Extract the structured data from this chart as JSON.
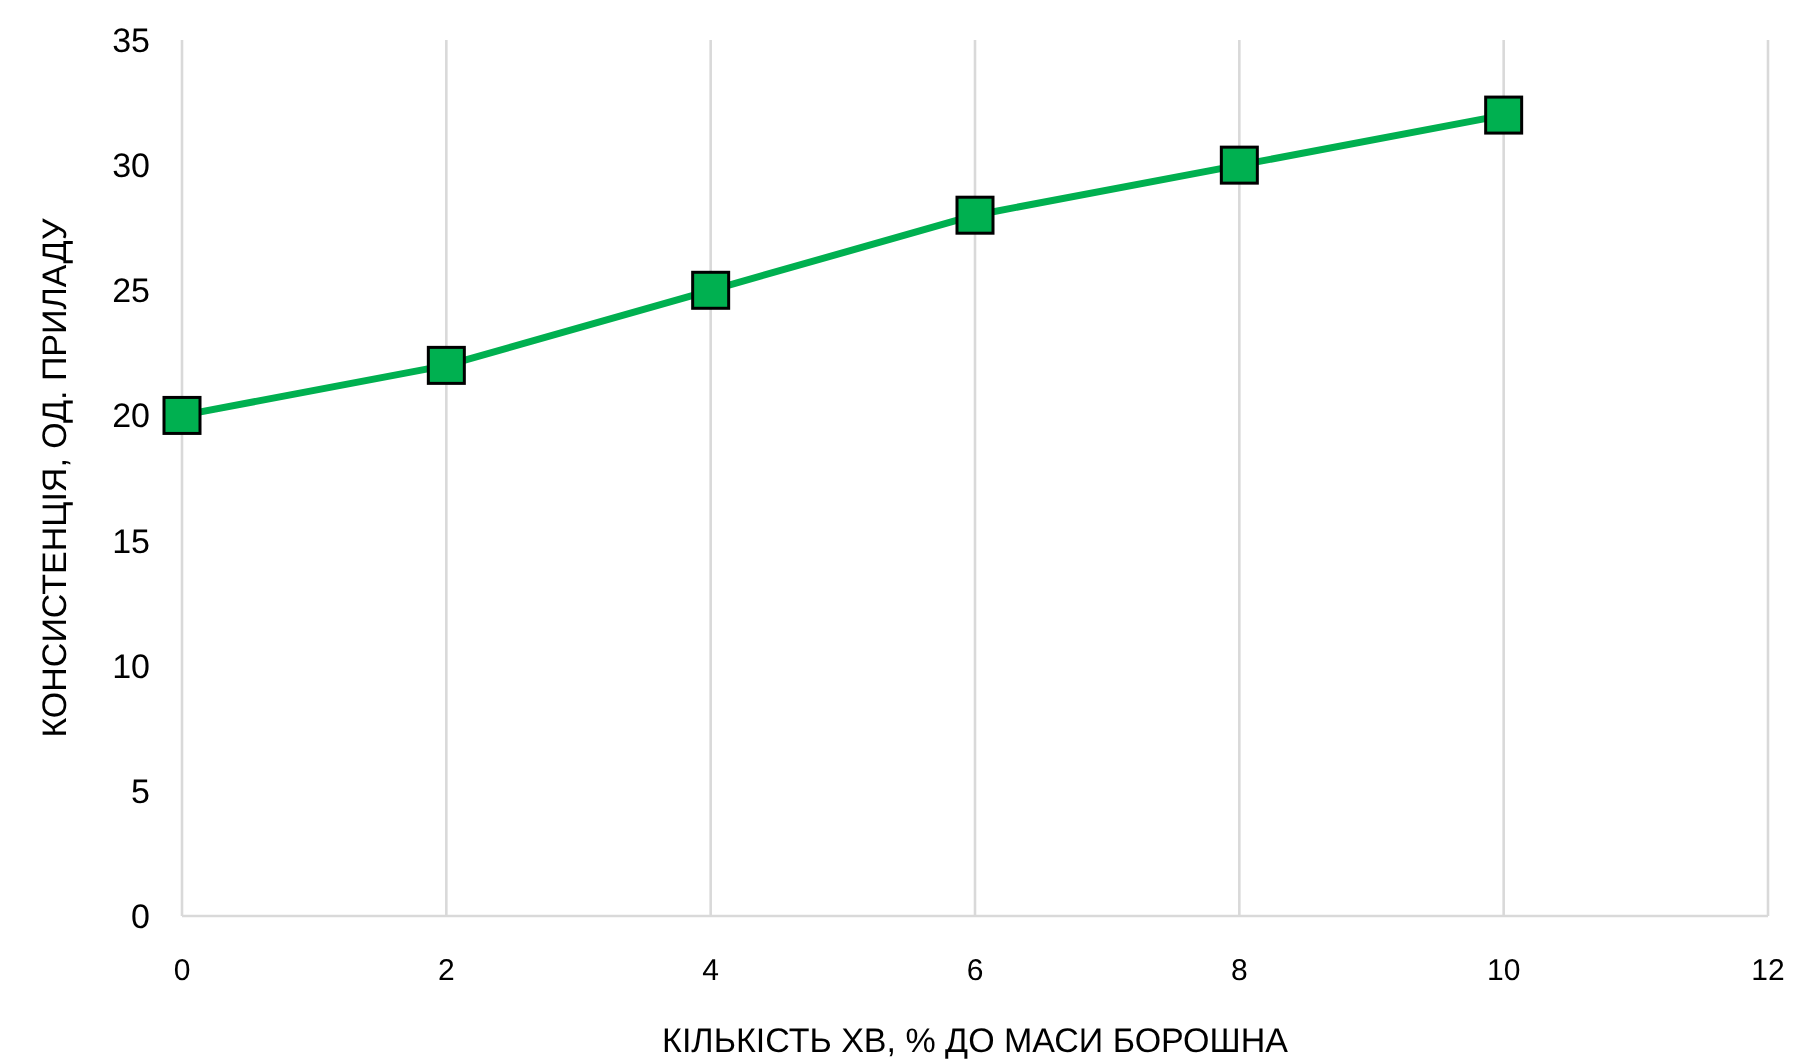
{
  "chart_data": {
    "type": "line",
    "xlabel": "КІЛЬКІСТЬ ХВ, % ДО МАСИ БОРОШНА",
    "ylabel": "КОНСИСТЕНЦІЯ, ОД. ПРИЛАДУ",
    "x": [
      0,
      2,
      4,
      6,
      8,
      10
    ],
    "series": [
      {
        "color": "#00b050",
        "values": [
          20,
          22,
          25,
          28,
          30,
          32
        ]
      }
    ],
    "xlim": [
      0,
      12
    ],
    "xticks": [
      0,
      2,
      4,
      6,
      8,
      10,
      12
    ],
    "ylim": [
      0,
      35
    ],
    "yticks": [
      0,
      5,
      10,
      15,
      20,
      25,
      30,
      35
    ],
    "grid": "x",
    "marker": "square",
    "line_style": "solid"
  }
}
